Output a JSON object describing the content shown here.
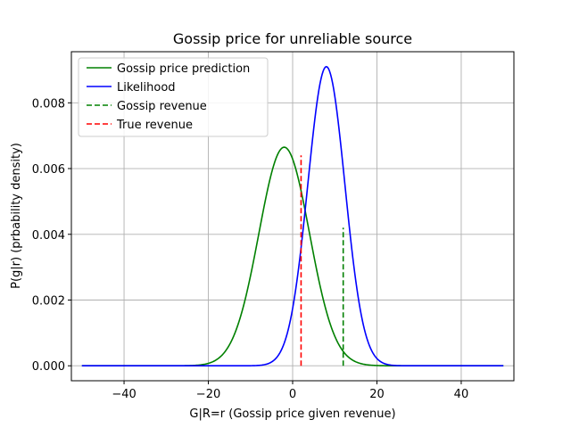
{
  "chart_data": {
    "type": "line",
    "title": "Gossip price for unreliable source",
    "xlabel": "G|R=r (Gossip price given revenue)",
    "ylabel": "P(g|r) (prbability density)",
    "xlim": [
      -52.5,
      52.5
    ],
    "ylim": [
      -0.000455,
      0.009555
    ],
    "x_ticks": [
      -40,
      -20,
      0,
      20,
      40
    ],
    "x_tick_labels": [
      "−40",
      "−20",
      "0",
      "20",
      "40"
    ],
    "y_ticks": [
      0.0,
      0.002,
      0.004,
      0.006,
      0.008
    ],
    "y_tick_labels": [
      "0.000",
      "0.002",
      "0.004",
      "0.006",
      "0.008"
    ],
    "grid": true,
    "legend_position": "top-left",
    "series": [
      {
        "name": "Gossip price prediction",
        "style": "solid",
        "color": "#008000",
        "distribution": "normal",
        "mean": -2,
        "sd": 6.0,
        "peak": 0.00665,
        "x_range": [
          -50,
          50
        ]
      },
      {
        "name": "Likelihood",
        "style": "solid",
        "color": "#0000ff",
        "distribution": "normal",
        "mean": 8,
        "sd": 4.4,
        "peak": 0.0091,
        "x_range": [
          -50,
          50
        ]
      },
      {
        "name": "Gossip revenue",
        "style": "dashed",
        "color": "#008000",
        "x": 12,
        "y_range": [
          0,
          0.0042
        ]
      },
      {
        "name": "True revenue",
        "style": "dashed",
        "color": "#ff0000",
        "x": 2,
        "y_range": [
          0,
          0.0064
        ]
      }
    ]
  }
}
